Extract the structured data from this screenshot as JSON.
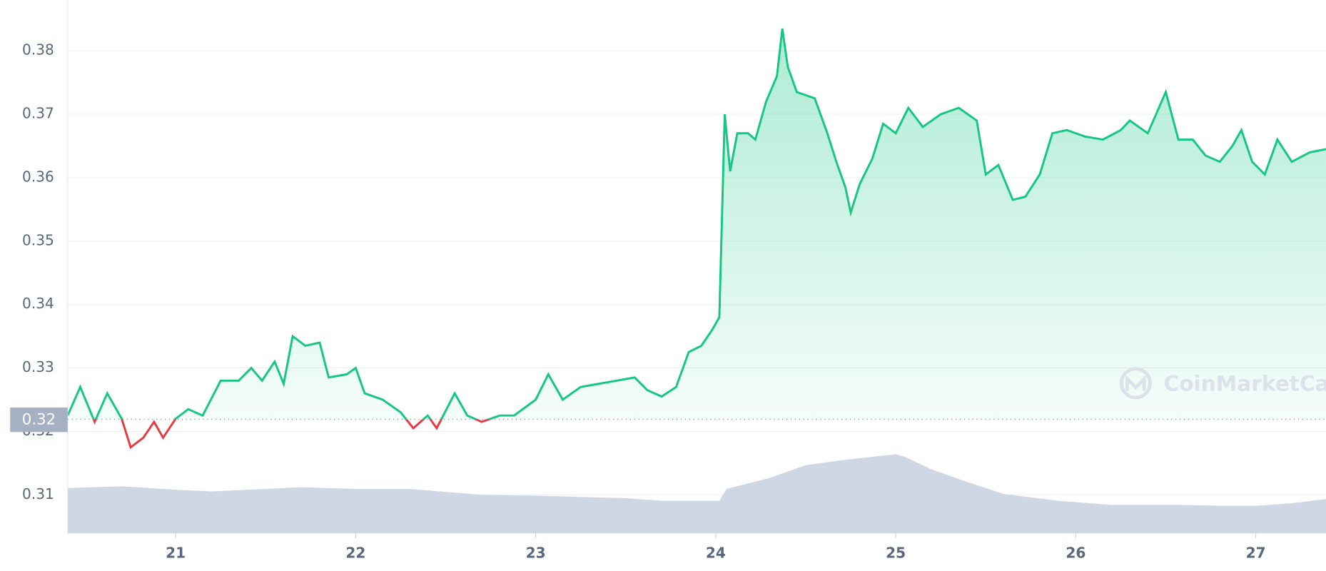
{
  "chart_data": {
    "type": "line",
    "watermark": "CoinMarketCap",
    "xlim": [
      20.4,
      27.39
    ],
    "xticks": [
      21,
      22,
      23,
      24,
      25,
      26,
      27
    ],
    "ylim": [
      0.304,
      0.388
    ],
    "yticks": [
      0.31,
      0.32,
      0.33,
      0.34,
      0.35,
      0.36,
      0.37,
      0.38
    ],
    "grid": true,
    "baseline": {
      "value": 0.3219,
      "label": "0.32"
    },
    "up_color": "#16c784",
    "down_color": "#ea3943",
    "series": [
      {
        "x": [
          20.4,
          20.47,
          20.55,
          20.62,
          20.7,
          20.75,
          20.82,
          20.88,
          20.93,
          21.0,
          21.07,
          21.15,
          21.25,
          21.35,
          21.42,
          21.48,
          21.55,
          21.6,
          21.65,
          21.72,
          21.8,
          21.85,
          21.95,
          22.0,
          22.05,
          22.15,
          22.25,
          22.32,
          22.4,
          22.45,
          22.55,
          22.62,
          22.7,
          22.8,
          22.88,
          23.0,
          23.07,
          23.15,
          23.25,
          23.35,
          23.45,
          23.55,
          23.62,
          23.7,
          23.78,
          23.85,
          23.92,
          23.98,
          24.02,
          24.05,
          24.08,
          24.12,
          24.18,
          24.22,
          24.28,
          24.34,
          24.37,
          24.4,
          24.45,
          24.5,
          24.55,
          24.62,
          24.67,
          24.72,
          24.75,
          24.8,
          24.87,
          24.93,
          25.0,
          25.07,
          25.15,
          25.25,
          25.35,
          25.45,
          25.5,
          25.57,
          25.65,
          25.72,
          25.8,
          25.87,
          25.95,
          26.05,
          26.15,
          26.25,
          26.3,
          26.4,
          26.5,
          26.57,
          26.65,
          26.72,
          26.8,
          26.87,
          26.92,
          26.98,
          27.05,
          27.12,
          27.2,
          27.3,
          27.39
        ],
        "values": [
          0.3225,
          0.327,
          0.3215,
          0.326,
          0.322,
          0.3175,
          0.319,
          0.3215,
          0.319,
          0.322,
          0.3235,
          0.3225,
          0.328,
          0.328,
          0.33,
          0.328,
          0.331,
          0.3275,
          0.335,
          0.3335,
          0.334,
          0.3285,
          0.329,
          0.33,
          0.326,
          0.325,
          0.323,
          0.3205,
          0.3225,
          0.3205,
          0.326,
          0.3225,
          0.3215,
          0.3225,
          0.3225,
          0.325,
          0.329,
          0.325,
          0.327,
          0.3275,
          0.328,
          0.3285,
          0.3265,
          0.3255,
          0.327,
          0.3325,
          0.3335,
          0.336,
          0.338,
          0.37,
          0.361,
          0.367,
          0.367,
          0.366,
          0.372,
          0.376,
          0.3835,
          0.3775,
          0.3735,
          0.373,
          0.3725,
          0.367,
          0.3625,
          0.3585,
          0.3545,
          0.359,
          0.363,
          0.3685,
          0.367,
          0.371,
          0.368,
          0.37,
          0.371,
          0.369,
          0.3605,
          0.362,
          0.3565,
          0.357,
          0.3605,
          0.367,
          0.3675,
          0.3665,
          0.366,
          0.3675,
          0.369,
          0.367,
          0.3735,
          0.366,
          0.366,
          0.3635,
          0.3625,
          0.365,
          0.3675,
          0.3625,
          0.3605,
          0.366,
          0.3625,
          0.364,
          0.3645
        ]
      }
    ],
    "volume": {
      "color": "#cfd6e4",
      "ylim": [
        0,
        630
      ],
      "x": [
        20.4,
        20.7,
        21.0,
        21.2,
        21.5,
        21.7,
        22.0,
        22.3,
        22.7,
        23.0,
        23.5,
        23.7,
        24.02,
        24.06,
        24.3,
        24.5,
        24.7,
        25.0,
        25.05,
        25.2,
        25.4,
        25.6,
        25.9,
        26.2,
        26.6,
        26.8,
        27.0,
        27.2,
        27.39
      ],
      "values": [
        53,
        55,
        51,
        49,
        52,
        54,
        52,
        52,
        45,
        44,
        41,
        38,
        38,
        52,
        65,
        80,
        86,
        93,
        90,
        75,
        60,
        46,
        38,
        33,
        33,
        32,
        32,
        35,
        40
      ]
    }
  }
}
